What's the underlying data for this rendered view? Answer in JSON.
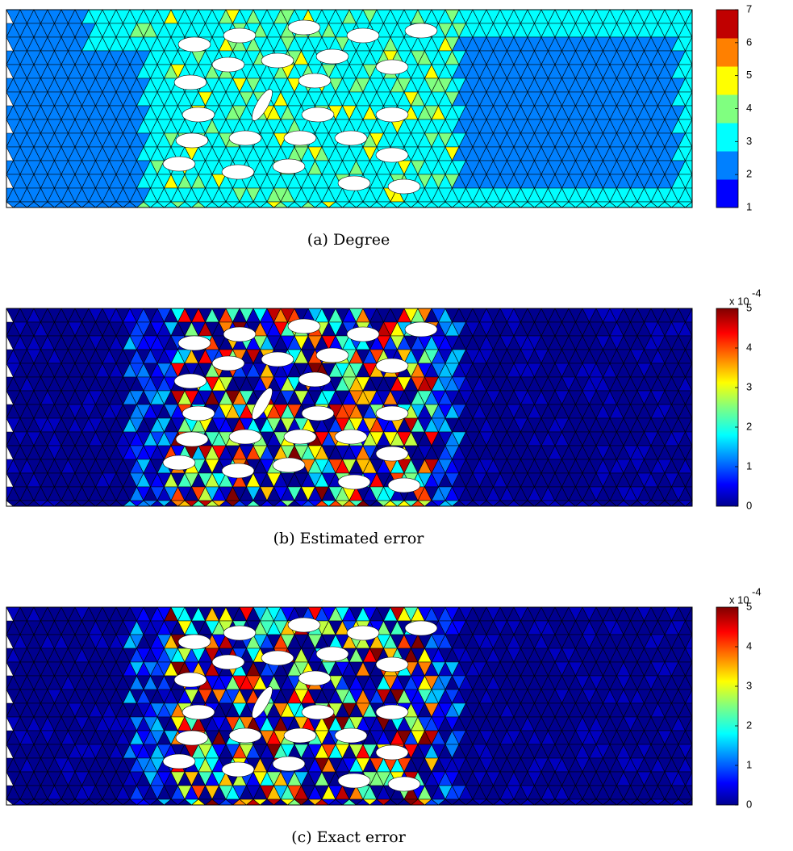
{
  "panels": [
    {
      "caption": "(a) Degree",
      "colorbar": {
        "lim": [
          1,
          7
        ],
        "ticks": [
          1,
          2,
          3,
          4,
          5,
          6,
          7
        ],
        "colormap": "discrete",
        "colors": [
          "#0000ff",
          "#0080ff",
          "#00ffff",
          "#80ff80",
          "#ffff00",
          "#ff8000",
          "#c00000"
        ]
      }
    },
    {
      "caption": "(b) Estimated error",
      "colorbar": {
        "lim": [
          0,
          5
        ],
        "ticks": [
          0,
          1,
          2,
          3,
          4,
          5
        ],
        "colormap": "jet",
        "multiplier": "x 10",
        "exponent": "-4"
      }
    },
    {
      "caption": "(c) Exact error",
      "colorbar": {
        "lim": [
          0,
          5
        ],
        "ticks": [
          0,
          1,
          2,
          3,
          4,
          5
        ],
        "colormap": "jet",
        "multiplier": "x 10",
        "exponent": "-4"
      }
    }
  ]
}
